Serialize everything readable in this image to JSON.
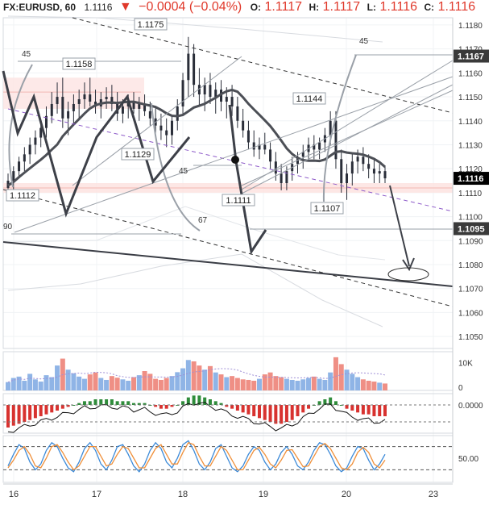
{
  "header": {
    "symbol": "FX:EURUSD, 60",
    "last": "1.1116",
    "arrow": "▼",
    "change": "−0.0004 (−0.04%)",
    "o_label": "O:",
    "o_value": "1.1117",
    "h_label": "H:",
    "h_value": "1.1117",
    "l_label": "L:",
    "l_value": "1.1116",
    "c_label": "C:",
    "c_value": "1.1116",
    "change_color": "#e0392b"
  },
  "chart_data": [
    {
      "type": "candlestick",
      "title": "FX:EURUSD, 60",
      "ylim": [
        1.1045,
        1.1183
      ],
      "x_ticks": [
        "16",
        "17",
        "18",
        "19",
        "20",
        "23"
      ],
      "y_ticks": [
        "1.1180",
        "1.1170",
        "1.1160",
        "1.1150",
        "1.1140",
        "1.1130",
        "1.1120",
        "1.1110",
        "1.1100",
        "1.1090",
        "1.1080",
        "1.1070",
        "1.1060",
        "1.1050"
      ],
      "price_badges": [
        {
          "label": "1.1167",
          "value": 1.1167,
          "color": "#3a3a3a"
        },
        {
          "label": "1.1116",
          "value": 1.1116,
          "color": "#000000"
        },
        {
          "label": "1.1095",
          "value": 1.1095,
          "color": "#3a3a3a"
        }
      ],
      "annotations": [
        {
          "label": "1.1175",
          "value": 1.1175
        },
        {
          "label": "1.1158",
          "value": 1.1158
        },
        {
          "label": "1.1144",
          "value": 1.1144
        },
        {
          "label": "1.1129",
          "value": 1.1129
        },
        {
          "label": "1.1112",
          "value": 1.1112
        },
        {
          "label": "1.1111",
          "value": 1.1111
        },
        {
          "label": "1.1107",
          "value": 1.1107
        }
      ],
      "fib_labels": [
        "45",
        "45",
        "45",
        "67",
        "90"
      ],
      "series": [
        {
          "values": [
            [
              1.1112,
              1.1118,
              1.1108,
              1.1115
            ],
            [
              1.1115,
              1.1121,
              1.1111,
              1.1119
            ],
            [
              1.1119,
              1.1125,
              1.1116,
              1.1123
            ],
            [
              1.1123,
              1.1129,
              1.1119,
              1.1126
            ],
            [
              1.1126,
              1.1133,
              1.1122,
              1.113
            ],
            [
              1.113,
              1.1136,
              1.1126,
              1.1133
            ],
            [
              1.1133,
              1.114,
              1.1129,
              1.1137
            ],
            [
              1.1137,
              1.1146,
              1.1133,
              1.1142
            ],
            [
              1.1142,
              1.1152,
              1.1139,
              1.1147
            ],
            [
              1.1147,
              1.1156,
              1.1143,
              1.115
            ],
            [
              1.115,
              1.1158,
              1.1137,
              1.1141
            ],
            [
              1.1141,
              1.1148,
              1.1134,
              1.1144
            ],
            [
              1.1144,
              1.1151,
              1.1138,
              1.1147
            ],
            [
              1.1147,
              1.1153,
              1.1141,
              1.1149
            ],
            [
              1.1149,
              1.1156,
              1.1145,
              1.1151
            ],
            [
              1.1151,
              1.1158,
              1.1146,
              1.1148
            ],
            [
              1.1148,
              1.1153,
              1.1143,
              1.1146
            ],
            [
              1.1146,
              1.1152,
              1.1141,
              1.1149
            ],
            [
              1.1149,
              1.1154,
              1.1145,
              1.115
            ],
            [
              1.115,
              1.1155,
              1.1144,
              1.1147
            ],
            [
              1.1147,
              1.1152,
              1.114,
              1.1143
            ],
            [
              1.1143,
              1.1149,
              1.1139,
              1.1146
            ],
            [
              1.1146,
              1.1151,
              1.1141,
              1.1148
            ],
            [
              1.1148,
              1.1152,
              1.1143,
              1.1145
            ],
            [
              1.1145,
              1.115,
              1.114,
              1.1147
            ],
            [
              1.1147,
              1.1151,
              1.1142,
              1.1144
            ],
            [
              1.1144,
              1.1148,
              1.1138,
              1.1141
            ],
            [
              1.1141,
              1.1146,
              1.1135,
              1.1138
            ],
            [
              1.1138,
              1.1143,
              1.1132,
              1.1136
            ],
            [
              1.1136,
              1.1141,
              1.1129,
              1.1134
            ],
            [
              1.1134,
              1.1142,
              1.113,
              1.114
            ],
            [
              1.114,
              1.1149,
              1.1136,
              1.1146
            ],
            [
              1.1146,
              1.116,
              1.1142,
              1.1157
            ],
            [
              1.1157,
              1.1175,
              1.115,
              1.1168
            ],
            [
              1.1168,
              1.1172,
              1.115,
              1.1155
            ],
            [
              1.1155,
              1.1162,
              1.1146,
              1.1151
            ],
            [
              1.1151,
              1.1158,
              1.1144,
              1.1155
            ],
            [
              1.1155,
              1.116,
              1.1147,
              1.115
            ],
            [
              1.115,
              1.1156,
              1.1143,
              1.1153
            ],
            [
              1.1153,
              1.1157,
              1.1144,
              1.1148
            ],
            [
              1.1148,
              1.1154,
              1.1141,
              1.115
            ],
            [
              1.115,
              1.1155,
              1.1142,
              1.1146
            ],
            [
              1.1146,
              1.115,
              1.1137,
              1.114
            ],
            [
              1.114,
              1.1145,
              1.1133,
              1.1136
            ],
            [
              1.1136,
              1.114,
              1.1128,
              1.1131
            ],
            [
              1.1131,
              1.1136,
              1.1125,
              1.1128
            ],
            [
              1.1128,
              1.1133,
              1.1124,
              1.113
            ],
            [
              1.113,
              1.1135,
              1.1126,
              1.1128
            ],
            [
              1.1128,
              1.1131,
              1.112,
              1.1123
            ],
            [
              1.1123,
              1.1127,
              1.1115,
              1.1118
            ],
            [
              1.1118,
              1.1122,
              1.1111,
              1.1114
            ],
            [
              1.1114,
              1.1121,
              1.1111,
              1.1119
            ],
            [
              1.1119,
              1.1125,
              1.1115,
              1.1122
            ],
            [
              1.1122,
              1.1127,
              1.1118,
              1.1125
            ],
            [
              1.1125,
              1.113,
              1.112,
              1.1127
            ],
            [
              1.1127,
              1.1133,
              1.1123,
              1.113
            ],
            [
              1.113,
              1.1134,
              1.1124,
              1.1128
            ],
            [
              1.1128,
              1.1133,
              1.1124,
              1.1131
            ],
            [
              1.1131,
              1.1137,
              1.1127,
              1.1134
            ],
            [
              1.1134,
              1.1144,
              1.113,
              1.114
            ],
            [
              1.114,
              1.1144,
              1.112,
              1.1124
            ],
            [
              1.1124,
              1.1128,
              1.111,
              1.1114
            ],
            [
              1.1114,
              1.1122,
              1.1107,
              1.1118
            ],
            [
              1.1118,
              1.1126,
              1.1113,
              1.1123
            ],
            [
              1.1123,
              1.1128,
              1.1118,
              1.1125
            ],
            [
              1.1125,
              1.1129,
              1.1119,
              1.1122
            ],
            [
              1.1122,
              1.1126,
              1.1116,
              1.112
            ],
            [
              1.112,
              1.1124,
              1.1114,
              1.1118
            ],
            [
              1.1118,
              1.1122,
              1.1114,
              1.1119
            ],
            [
              1.1119,
              1.1121,
              1.1114,
              1.1116
            ]
          ]
        }
      ]
    },
    {
      "type": "bar",
      "ylabel": "",
      "y_ticks": [
        "10K",
        "0"
      ],
      "ylim": [
        0,
        14000
      ],
      "series": [
        {
          "values": [
            3000,
            4500,
            5000,
            3500,
            6000,
            4000,
            3200,
            5500,
            4800,
            9000,
            11500,
            7500,
            6200,
            5000,
            4200,
            5800,
            6500,
            4500,
            3800,
            5200,
            4600,
            4000,
            3500,
            4800,
            5500,
            7000,
            6000,
            4200,
            3800,
            4500,
            5200,
            6600,
            8000,
            11000,
            10500,
            9000,
            7500,
            8800,
            6500,
            5800,
            4800,
            5200,
            4500,
            4000,
            3800,
            3500,
            4200,
            5800,
            6500,
            5200,
            4800,
            4200,
            3800,
            3500,
            4000,
            4500,
            5000,
            4200,
            3800,
            6500,
            12000,
            9500,
            7500,
            6000,
            4800,
            4000,
            3500,
            3200,
            2800,
            2500
          ]
        }
      ]
    },
    {
      "type": "bar",
      "ylabel": "",
      "y_ticks": [
        "0.0000"
      ],
      "series": [
        {
          "values": [
            -0.0012,
            -0.0011,
            -0.001,
            -0.0009,
            -0.0008,
            -0.0007,
            -0.0006,
            -0.0005,
            -0.0004,
            -0.0003,
            -0.0002,
            -0.0001,
            0.0,
            0.0001,
            0.0002,
            0.0002,
            0.0003,
            0.0003,
            0.0003,
            0.0003,
            0.0002,
            0.0002,
            0.0002,
            0.0001,
            0.0001,
            0.0001,
            0.0,
            -0.0001,
            -0.0002,
            -0.0002,
            -0.0001,
            0.0,
            0.0002,
            0.0004,
            0.0005,
            0.0005,
            0.0004,
            0.0003,
            0.0002,
            0.0001,
            -0.0001,
            -0.0002,
            -0.0003,
            -0.0004,
            -0.0005,
            -0.0006,
            -0.0007,
            -0.0008,
            -0.0009,
            -0.001,
            -0.001,
            -0.0009,
            -0.0008,
            -0.0006,
            -0.0004,
            -0.0002,
            0.0,
            0.0002,
            0.0003,
            0.0004,
            0.0002,
            0.0,
            -0.0002,
            -0.0003,
            -0.0004,
            -0.0005,
            -0.0005,
            -0.0006,
            -0.0006,
            -0.0006
          ]
        }
      ]
    },
    {
      "type": "line",
      "ylabel": "",
      "y_ticks": [
        "50.00"
      ],
      "ylim": [
        0,
        100
      ],
      "series": [
        {
          "values": [
            30,
            60,
            85,
            75,
            40,
            20,
            35,
            70,
            90,
            80,
            50,
            25,
            15,
            40,
            75,
            90,
            70,
            35,
            20,
            45,
            80,
            85,
            60,
            30,
            15,
            35,
            70,
            90,
            75,
            40,
            25,
            50,
            85,
            95,
            70,
            35,
            20,
            40,
            75,
            85,
            55,
            25,
            15,
            30,
            60,
            80,
            70,
            40,
            20,
            35,
            65,
            80,
            60,
            30,
            20,
            40,
            70,
            90,
            85,
            60,
            30,
            15,
            25,
            55,
            80,
            75,
            45,
            20,
            35,
            60
          ]
        },
        {
          "values": [
            25,
            45,
            70,
            80,
            60,
            30,
            25,
            50,
            80,
            85,
            65,
            40,
            20,
            30,
            55,
            80,
            80,
            55,
            30,
            35,
            60,
            80,
            75,
            50,
            25,
            25,
            50,
            75,
            85,
            60,
            35,
            35,
            65,
            90,
            85,
            55,
            30,
            30,
            55,
            80,
            70,
            45,
            20,
            20,
            45,
            70,
            78,
            60,
            35,
            25,
            45,
            70,
            72,
            50,
            28,
            30,
            55,
            80,
            88,
            75,
            50,
            25,
            20,
            35,
            65,
            78,
            65,
            35,
            25,
            45
          ]
        }
      ]
    }
  ]
}
